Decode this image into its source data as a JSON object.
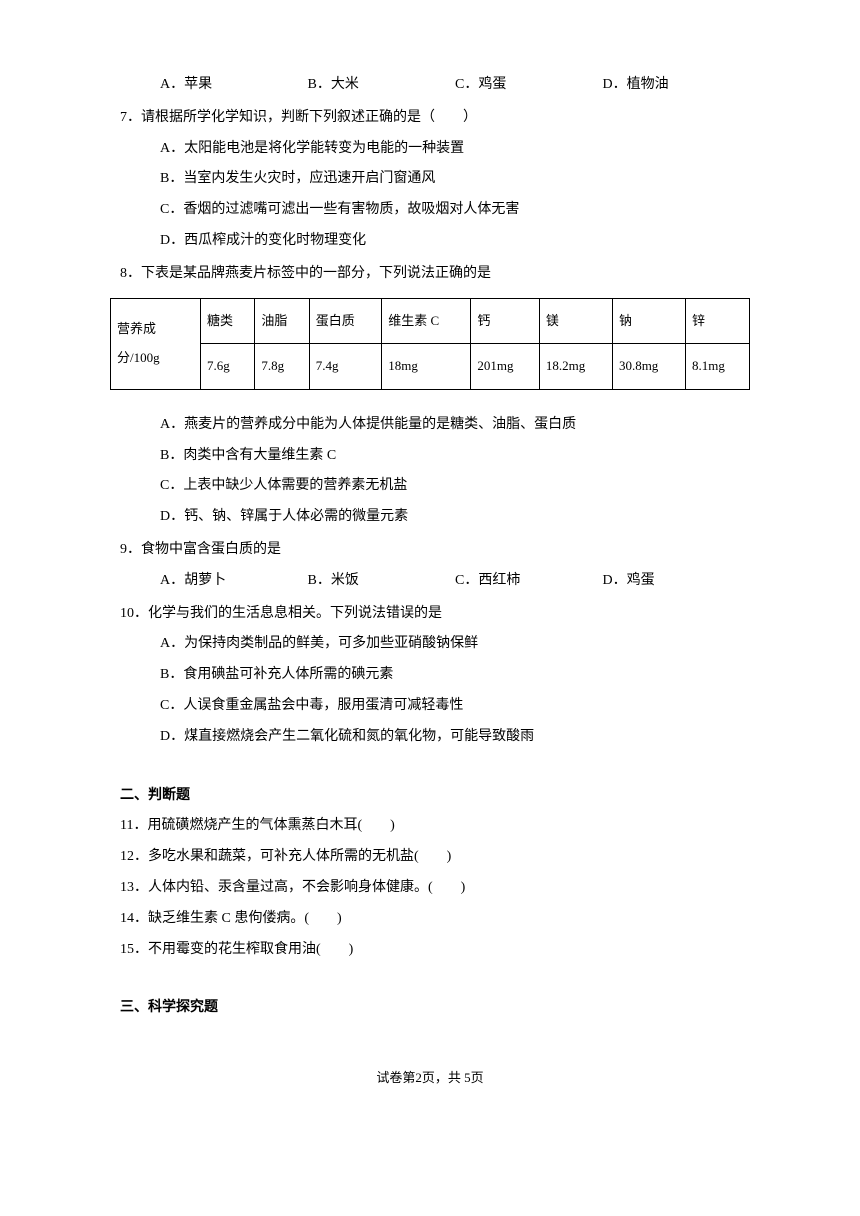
{
  "q6_options": {
    "a": "A．苹果",
    "b": "B．大米",
    "c": "C．鸡蛋",
    "d": "D．植物油"
  },
  "q7": {
    "stem": "7．请根据所学化学知识，判断下列叙述正确的是（　　）",
    "a": "A．太阳能电池是将化学能转变为电能的一种装置",
    "b": "B．当室内发生火灾时，应迅速开启门窗通风",
    "c": "C．香烟的过滤嘴可滤出一些有害物质，故吸烟对人体无害",
    "d": "D．西瓜榨成汁的变化时物理变化"
  },
  "q8": {
    "stem": "8．下表是某品牌燕麦片标签中的一部分，下列说法正确的是",
    "table": {
      "row_label": "营养成分/100g",
      "headers": [
        "糖类",
        "油脂",
        "蛋白质",
        "维生素 C",
        "钙",
        "镁",
        "钠",
        "锌"
      ],
      "values": [
        "7.6g",
        "7.8g",
        "7.4g",
        "18mg",
        "201mg",
        "18.2mg",
        "30.8mg",
        "8.1mg"
      ]
    },
    "a": "A．燕麦片的营养成分中能为人体提供能量的是糖类、油脂、蛋白质",
    "b": "B．肉类中含有大量维生素 C",
    "c": "C．上表中缺少人体需要的营养素无机盐",
    "d": "D．钙、钠、锌属于人体必需的微量元素"
  },
  "q9": {
    "stem": "9．食物中富含蛋白质的是",
    "a": "A．胡萝卜",
    "b": "B．米饭",
    "c": "C．西红柿",
    "d": "D．鸡蛋"
  },
  "q10": {
    "stem": "10．化学与我们的生活息息相关。下列说法错误的是",
    "a": "A．为保持肉类制品的鲜美，可多加些亚硝酸钠保鲜",
    "b": "B．食用碘盐可补充人体所需的碘元素",
    "c": "C．人误食重金属盐会中毒，服用蛋清可减轻毒性",
    "d": "D．煤直接燃烧会产生二氧化硫和氮的氧化物，可能导致酸雨"
  },
  "section2": {
    "title": "二、判断题",
    "q11": "11．用硫磺燃烧产生的气体熏蒸白木耳(　　)",
    "q12": "12．多吃水果和蔬菜，可补充人体所需的无机盐(　　)",
    "q13": "13．人体内铅、汞含量过高，不会影响身体健康。(　　)",
    "q14": "14．缺乏维生素 C 患佝偻病。(　　)",
    "q15": "15．不用霉变的花生榨取食用油(　　)"
  },
  "section3": {
    "title": "三、科学探究题"
  },
  "footer": "试卷第2页，共 5页"
}
